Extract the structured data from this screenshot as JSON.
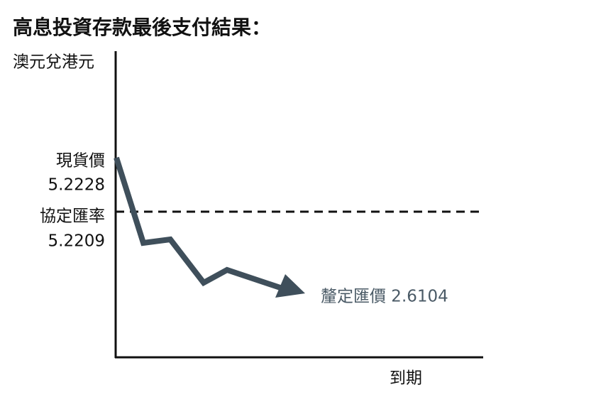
{
  "title": "高息投資存款最後支付結果：",
  "y_axis_label": "澳元兌港元",
  "x_axis_label": "到期",
  "spot": {
    "label": "現貨價",
    "value": "5.2228"
  },
  "strike": {
    "label": "協定匯率",
    "value": "5.2209"
  },
  "fixing": {
    "label": "釐定匯價 2.6104"
  }
}
